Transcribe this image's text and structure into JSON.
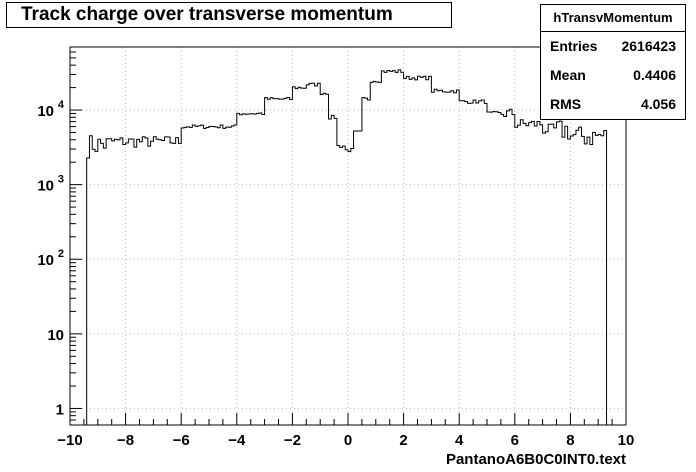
{
  "chart_data": {
    "type": "histogram",
    "title": "Track charge over transverse momentum",
    "xlabel": "PantanoA6B0C0INT0.text",
    "ylabel": "",
    "xlim": [
      -10,
      10
    ],
    "ylim": [
      0.6,
      70000
    ],
    "log_y": true,
    "grid": true,
    "x_ticks": [
      -10,
      -8,
      -6,
      -4,
      -2,
      0,
      2,
      4,
      6,
      8,
      10
    ],
    "x_tick_labels": [
      "−10",
      "−8",
      "−6",
      "−4",
      "−2",
      "0",
      "2",
      "4",
      "6",
      "8",
      "10"
    ],
    "y_ticks": [
      1,
      10,
      100,
      1000,
      10000
    ],
    "bin_width": 0.1,
    "bins": [
      [
        -10.0,
        -9.4,
        0
      ],
      [
        -9.4,
        -8.5,
        3500
      ],
      [
        -8.5,
        -6.0,
        3800
      ],
      [
        -6.0,
        -4.0,
        6000
      ],
      [
        -4.0,
        -3.0,
        9000
      ],
      [
        -3.0,
        -2.0,
        14000
      ],
      [
        -2.0,
        -1.5,
        20000
      ],
      [
        -1.5,
        -1.0,
        22000
      ],
      [
        -1.0,
        -0.7,
        17000
      ],
      [
        -0.7,
        -0.4,
        8000
      ],
      [
        -0.4,
        -0.1,
        3300
      ],
      [
        -0.1,
        0.2,
        2900
      ],
      [
        0.2,
        0.5,
        5000
      ],
      [
        0.5,
        0.8,
        14000
      ],
      [
        0.8,
        1.2,
        25000
      ],
      [
        1.2,
        2.0,
        33000
      ],
      [
        2.0,
        3.0,
        27000
      ],
      [
        3.0,
        4.0,
        18000
      ],
      [
        4.0,
        5.0,
        13000
      ],
      [
        5.0,
        6.0,
        9000
      ],
      [
        6.0,
        7.0,
        6500
      ],
      [
        7.0,
        8.0,
        5500
      ],
      [
        8.0,
        9.3,
        4500
      ],
      [
        9.3,
        10.0,
        0
      ]
    ],
    "stats": {
      "name": "hTransvMomentum",
      "entries_label": "Entries",
      "entries": "2616423",
      "mean_label": "Mean",
      "mean": "0.4406",
      "rms_label": "RMS",
      "rms": "4.056"
    }
  }
}
